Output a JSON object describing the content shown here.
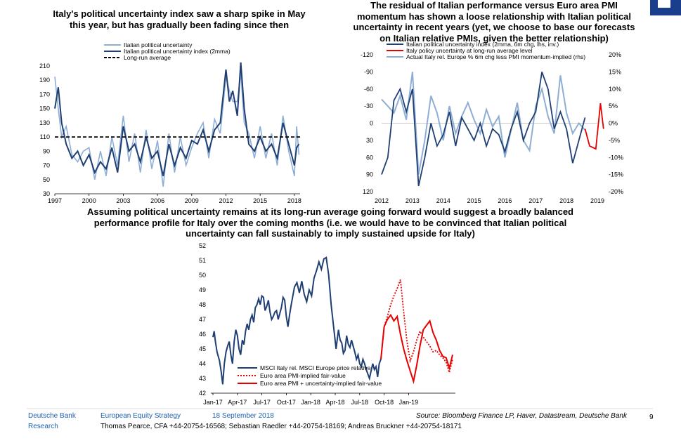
{
  "colors": {
    "dark_blue": "#1f3f73",
    "light_blue": "#8eaed6",
    "red": "#e60000",
    "footer_blue": "#1f5fae"
  },
  "chart_data": [
    {
      "type": "line",
      "title": "Italy's political uncertainty index saw a sharp spike in May this year, but has gradually been fading since then",
      "x_ticks": [
        "1997",
        "2000",
        "2003",
        "2006",
        "2009",
        "2012",
        "2015",
        "2018"
      ],
      "xlim": [
        1997,
        2018.5
      ],
      "ylim": [
        30,
        210
      ],
      "y_ticks": [
        "210",
        "190",
        "170",
        "150",
        "130",
        "110",
        "90",
        "70",
        "50",
        "30"
      ],
      "legend": [
        "Italian political uncertainty",
        "Italian political uncertainty index (2mma)",
        "Long-run average"
      ],
      "long_run_average": 110,
      "series": [
        {
          "name": "Italian political uncertainty index (2mma)",
          "x": [
            1997,
            1997.3,
            1997.6,
            1998,
            1998.5,
            1999,
            1999.5,
            2000,
            2000.5,
            2001,
            2001.5,
            2002,
            2002.5,
            2003,
            2003.5,
            2004,
            2004.5,
            2005,
            2005.5,
            2006,
            2006.5,
            2007,
            2007.5,
            2008,
            2008.5,
            2009,
            2009.5,
            2010,
            2010.5,
            2011,
            2011.5,
            2012,
            2012.3,
            2012.6,
            2013,
            2013.3,
            2013.6,
            2014,
            2014.5,
            2015,
            2015.5,
            2016,
            2016.5,
            2017,
            2017.5,
            2018,
            2018.2,
            2018.4
          ],
          "y": [
            150,
            180,
            130,
            100,
            80,
            90,
            70,
            85,
            60,
            75,
            65,
            95,
            60,
            125,
            90,
            100,
            75,
            110,
            80,
            90,
            55,
            100,
            70,
            95,
            80,
            105,
            100,
            120,
            90,
            120,
            130,
            205,
            160,
            175,
            140,
            215,
            150,
            100,
            90,
            110,
            90,
            100,
            80,
            130,
            100,
            70,
            95,
            100
          ]
        },
        {
          "name": "Italian political uncertainty",
          "x": [
            1997,
            1997.3,
            1997.6,
            1998,
            1998.5,
            1999,
            1999.5,
            2000,
            2000.5,
            2001,
            2001.5,
            2002,
            2002.5,
            2003,
            2003.5,
            2004,
            2004.5,
            2005,
            2005.5,
            2006,
            2006.5,
            2007,
            2007.5,
            2008,
            2008.5,
            2009,
            2009.5,
            2010,
            2010.5,
            2011,
            2011.5,
            2012,
            2012.3,
            2012.6,
            2013,
            2013.3,
            2013.6,
            2014,
            2014.5,
            2015,
            2015.5,
            2016,
            2016.5,
            2017,
            2017.5,
            2018,
            2018.2,
            2018.4
          ],
          "y": [
            195,
            150,
            110,
            125,
            85,
            75,
            90,
            95,
            50,
            90,
            55,
            110,
            70,
            140,
            75,
            115,
            60,
            120,
            65,
            105,
            40,
            115,
            60,
            110,
            70,
            95,
            115,
            130,
            80,
            135,
            115,
            195,
            175,
            160,
            160,
            200,
            130,
            115,
            80,
            125,
            80,
            115,
            70,
            140,
            90,
            55,
            125,
            85
          ]
        }
      ]
    },
    {
      "type": "line",
      "title": "The residual of Italian performance versus Euro area PMI momentum has shown a loose relationship with Italian political uncertainty in recent years (yet, we choose to base our forecasts on Italian relative PMIs, given the better relationship)",
      "x_ticks": [
        "2012",
        "2013",
        "2014",
        "2015",
        "2016",
        "2017",
        "2018",
        "2019"
      ],
      "xlim": [
        2012,
        2019
      ],
      "y_left_ticks": [
        "-120",
        "-90",
        "-60",
        "-30",
        "0",
        "30",
        "60",
        "90",
        "120"
      ],
      "ylim_left": [
        -120,
        120
      ],
      "y_right_ticks": [
        "20%",
        "15%",
        "10%",
        "5%",
        "0%",
        "-5%",
        "-10%",
        "-15%",
        "-20%"
      ],
      "ylim_right": [
        -20,
        20
      ],
      "legend": [
        "Italian political uncertainty index (2mma, 6m chg, lhs, inv.)",
        "Italy policy uncertainty at long-run average level",
        "Actual Italy rel. Europe % 6m chg less PMI momentum-implied (rhs)"
      ],
      "series": [
        {
          "name": "Italian political uncertainty index (2mma, 6m chg, lhs, inv.)",
          "x": [
            2012,
            2012.2,
            2012.4,
            2012.6,
            2012.8,
            2013,
            2013.2,
            2013.4,
            2013.6,
            2013.8,
            2014,
            2014.2,
            2014.4,
            2014.6,
            2014.8,
            2015,
            2015.2,
            2015.4,
            2015.6,
            2015.8,
            2016,
            2016.2,
            2016.4,
            2016.6,
            2016.8,
            2017,
            2017.2,
            2017.4,
            2017.6,
            2017.8,
            2018,
            2018.2,
            2018.4,
            2018.6
          ],
          "y": [
            90,
            60,
            -40,
            -60,
            -20,
            -60,
            110,
            60,
            0,
            40,
            20,
            -20,
            40,
            -10,
            10,
            30,
            0,
            40,
            10,
            20,
            50,
            10,
            -20,
            30,
            0,
            -20,
            -90,
            -60,
            10,
            -20,
            10,
            70,
            30,
            -10
          ]
        },
        {
          "name": "Actual Italy rel. Europe % 6m chg less PMI momentum-implied (rhs)",
          "x": [
            2012,
            2012.2,
            2012.4,
            2012.6,
            2012.8,
            2013,
            2013.2,
            2013.4,
            2013.6,
            2013.8,
            2014,
            2014.2,
            2014.4,
            2014.6,
            2014.8,
            2015,
            2015.2,
            2015.4,
            2015.6,
            2015.8,
            2016,
            2016.2,
            2016.4,
            2016.6,
            2016.8,
            2017,
            2017.2,
            2017.4,
            2017.6,
            2017.8,
            2018,
            2018.2,
            2018.4,
            2018.6
          ],
          "y": [
            7,
            5,
            3,
            8,
            1,
            15,
            -15,
            -5,
            8,
            3,
            -5,
            5,
            -3,
            2,
            6,
            1,
            -3,
            4,
            -1,
            2,
            -10,
            -2,
            6,
            -5,
            -8,
            5,
            10,
            2,
            -3,
            14,
            3,
            -3,
            0,
            -2
          ]
        },
        {
          "name": "Italy policy uncertainty at long-run average level",
          "x": [
            2018.6,
            2018.75,
            2018.95,
            2019.1,
            2019.2
          ],
          "y": [
            10,
            40,
            45,
            -35,
            10
          ]
        }
      ]
    },
    {
      "type": "line",
      "title": "Assuming political uncertainty remains at its long-run average going forward would suggest a broadly balanced performance profile for Italy over the coming months (i.e. we would have to be convinced that Italian political uncertainty can fall sustainably to imply sustained upside for Italy)",
      "x_ticks": [
        "Jan-17",
        "Apr-17",
        "Jul-17",
        "Oct-17",
        "Jan-18",
        "Apr-18",
        "Jul-18",
        "Oct-18",
        "Jan-19"
      ],
      "ylim": [
        42,
        52
      ],
      "y_ticks": [
        "52",
        "51",
        "50",
        "49",
        "48",
        "47",
        "46",
        "45",
        "44",
        "43",
        "42"
      ],
      "legend": [
        "MSCI Italy rel. MSCI Europe price relative",
        "Euro area PMI-implied fair-value",
        "Euro area PMI + uncertainty-implied fair-value"
      ],
      "series": [
        {
          "name": "MSCI Italy rel. MSCI Europe price relative",
          "x": [
            0,
            0.15,
            0.3,
            0.5,
            0.8,
            1.0,
            1.2,
            1.4,
            1.6,
            1.8,
            2.0,
            2.2,
            2.4,
            2.6,
            2.8,
            3.0,
            3.2,
            3.4,
            3.6,
            3.8,
            4.0,
            4.2,
            4.4,
            4.6,
            4.8,
            5.0,
            5.2,
            5.4,
            5.6,
            5.8,
            6.0,
            6.2,
            6.4,
            6.6,
            6.8,
            7.0,
            7.2,
            7.4,
            7.6,
            7.8,
            8.0,
            8.2,
            8.4,
            8.6,
            8.8,
            9.0,
            9.2,
            9.4,
            9.6,
            9.8,
            10.0,
            10.3,
            10.6,
            10.9,
            11.2,
            11.5,
            11.8,
            12.1,
            12.4,
            12.7,
            13.0,
            13.3,
            13.6,
            13.9,
            14.2,
            14.5,
            14.8,
            15.1,
            15.4,
            15.6,
            15.8,
            16.0,
            16.2,
            16.4,
            16.6,
            16.8,
            17.0,
            17.2,
            17.4,
            17.6,
            17.8,
            18.0,
            18.2,
            18.4,
            18.6,
            18.8,
            19.0,
            19.2,
            19.4,
            19.6,
            19.8,
            20.0,
            20.2,
            20.4,
            20.6
          ],
          "y": [
            45.8,
            46.2,
            45.5,
            44.8,
            44.2,
            43.5,
            42.6,
            44.0,
            44.8,
            45.2,
            45.5,
            44.6,
            44.0,
            45.5,
            46.3,
            45.9,
            45.0,
            44.6,
            45.6,
            45.3,
            46.2,
            46.7,
            46.3,
            47.0,
            47.3,
            46.8,
            47.8,
            48.0,
            48.4,
            48.0,
            48.6,
            48.5,
            47.6,
            47.9,
            48.3,
            47.5,
            47.0,
            47.2,
            47.5,
            47.6,
            47.0,
            47.4,
            47.8,
            48.5,
            48.3,
            47.2,
            46.5,
            47.3,
            48.0,
            48.6,
            49.2,
            49.5,
            48.8,
            49.6,
            48.7,
            48.2,
            49.0,
            48.6,
            49.8,
            50.3,
            50.9,
            50.4,
            51.1,
            51.2,
            50.0,
            48.0,
            46.5,
            45.0,
            46.3,
            45.6,
            45.4,
            44.7,
            44.9,
            45.9,
            45.3,
            45.1,
            45.6,
            45.2,
            44.8,
            44.3,
            44.6,
            44.0,
            43.8,
            44.3,
            44.0,
            43.6,
            43.3,
            43.0,
            43.5,
            44.0,
            43.6,
            43.8,
            43.1,
            44.0,
            44.3
          ]
        },
        {
          "name": "Euro area PMI-implied fair-value",
          "x": [
            20.6,
            21.0,
            21.4,
            21.8,
            22.2,
            22.6,
            23.0,
            23.4,
            23.8,
            24.2,
            24.6,
            25.0,
            25.4,
            25.8,
            26.2,
            26.6,
            27.0,
            27.4,
            27.8,
            28.2,
            28.6,
            29.0,
            29.4
          ],
          "y": [
            44.3,
            46.5,
            47.2,
            48.0,
            48.6,
            49.1,
            49.7,
            47.5,
            45.5,
            44.2,
            44.8,
            45.6,
            46.2,
            45.8,
            45.5,
            45.2,
            44.8,
            44.9,
            44.6,
            44.4,
            44.1,
            43.4,
            44.3
          ]
        },
        {
          "name": "Euro area PMI + uncertainty-implied fair-value",
          "x": [
            20.6,
            21.0,
            21.4,
            21.8,
            22.2,
            22.6,
            23.0,
            23.4,
            23.8,
            24.2,
            24.6,
            25.0,
            25.4,
            25.8,
            26.2,
            26.6,
            27.0,
            27.4,
            27.8,
            28.2,
            28.6,
            29.0,
            29.4
          ],
          "y": [
            44.3,
            46.5,
            47.0,
            47.3,
            46.9,
            47.2,
            46.0,
            45.0,
            44.2,
            43.5,
            42.8,
            43.9,
            45.2,
            46.3,
            46.6,
            46.9,
            46.1,
            45.6,
            44.9,
            44.5,
            44.4,
            43.7,
            44.6
          ]
        }
      ]
    }
  ],
  "footer": {
    "org_line1": "Deutsche Bank",
    "org_line2": "Research",
    "team": "European Equity Strategy",
    "date": "18 September 2018",
    "source": "Source: Bloomberg Finance LP, Haver, Datastream, Deutsche Bank",
    "page": "9",
    "authors": "Thomas Pearce, CFA +44-20754-16568; Sebastian Raedler +44-20754-18169; Andreas Bruckner +44-20754-18171"
  }
}
